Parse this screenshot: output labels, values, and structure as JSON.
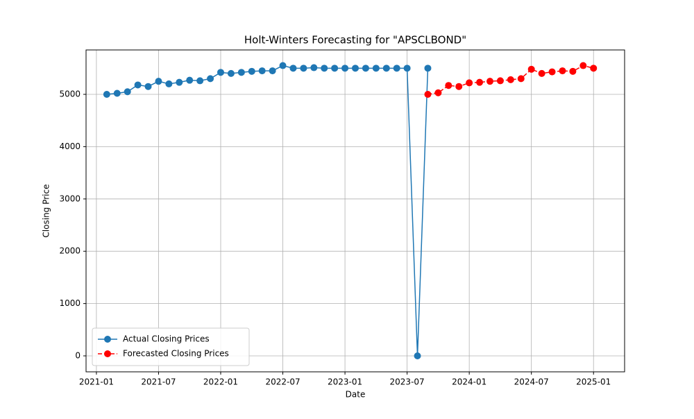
{
  "chart_data": {
    "type": "line",
    "title": "Holt-Winters Forecasting for \"APSCLBOND\"",
    "x_label": "Date",
    "y_label": "Closing Price",
    "series": [
      {
        "name": "Actual Closing Prices",
        "color": "#1f77b4",
        "line_style": "solid",
        "x": [
          "2021-02",
          "2021-03",
          "2021-04",
          "2021-05",
          "2021-06",
          "2021-07",
          "2021-08",
          "2021-09",
          "2021-10",
          "2021-11",
          "2021-12",
          "2022-01",
          "2022-02",
          "2022-03",
          "2022-04",
          "2022-05",
          "2022-06",
          "2022-07",
          "2022-08",
          "2022-09",
          "2022-10",
          "2022-11",
          "2022-12",
          "2023-01",
          "2023-02",
          "2023-03",
          "2023-04",
          "2023-05",
          "2023-06",
          "2023-07",
          "2023-08",
          "2023-09"
        ],
        "values": [
          5000,
          5020,
          5050,
          5180,
          5150,
          5250,
          5200,
          5230,
          5270,
          5260,
          5300,
          5420,
          5400,
          5420,
          5440,
          5450,
          5450,
          5550,
          5500,
          5500,
          5510,
          5500,
          5500,
          5500,
          5500,
          5500,
          5500,
          5500,
          5500,
          5500,
          0,
          5500
        ]
      },
      {
        "name": "Forecasted Closing Prices",
        "color": "#ff0000",
        "line_style": "dashed",
        "x": [
          "2023-09",
          "2023-10",
          "2023-11",
          "2023-12",
          "2024-01",
          "2024-02",
          "2024-03",
          "2024-04",
          "2024-05",
          "2024-06",
          "2024-07",
          "2024-08",
          "2024-09",
          "2024-10",
          "2024-11",
          "2024-12",
          "2025-01"
        ],
        "values": [
          5000,
          5030,
          5170,
          5150,
          5220,
          5230,
          5250,
          5260,
          5280,
          5300,
          5480,
          5400,
          5430,
          5450,
          5440,
          5550,
          5500
        ]
      }
    ],
    "xlim": [
      "2020-12",
      "2025-04"
    ],
    "xticks": [
      "2021-01",
      "2021-07",
      "2022-01",
      "2022-07",
      "2023-01",
      "2023-07",
      "2024-01",
      "2024-07",
      "2025-01"
    ],
    "ylim": [
      -305,
      5849
    ],
    "yticks": [
      0,
      1000,
      2000,
      3000,
      4000,
      5000
    ],
    "grid": true,
    "legend": "lower left"
  }
}
